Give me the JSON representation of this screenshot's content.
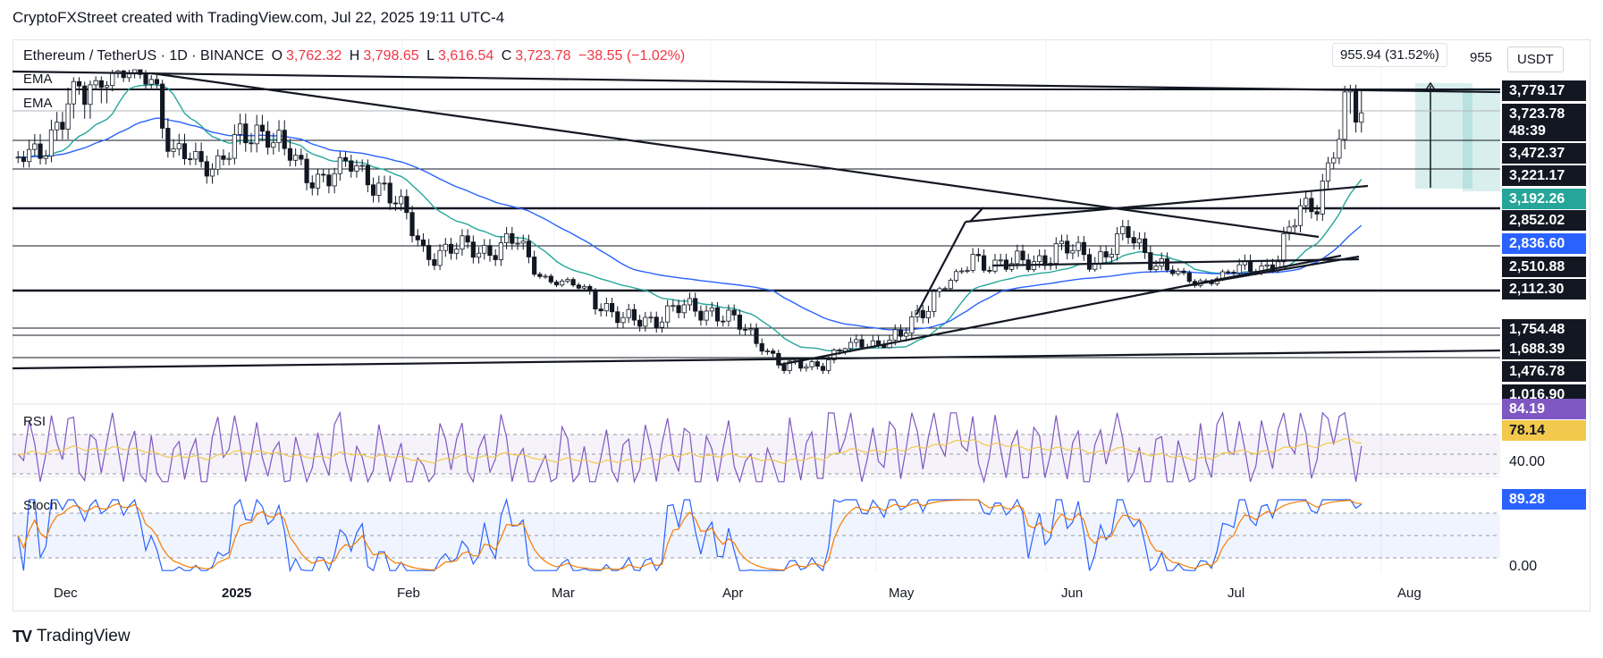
{
  "header": {
    "caption": "CryptoFXStreet created with TradingView.com, Jul 22, 2025 19:11 UTC-4"
  },
  "symbol": {
    "name": "Ethereum / TetherUS · 1D · BINANCE",
    "open_label": "O",
    "open": "3,762.32",
    "high_label": "H",
    "high": "3,798.65",
    "low_label": "L",
    "low": "3,616.54",
    "close_label": "C",
    "close": "3,723.78",
    "change": "−38.55 (−1.02%)"
  },
  "indicators": {
    "ema1": "EMA",
    "ema2": "EMA",
    "rsi": "RSI",
    "stoch": "Stoch"
  },
  "measure": {
    "text": "955.94 (31.52%)",
    "short": "955"
  },
  "currency": "USDT",
  "price_tags": [
    {
      "text": "3,779.17",
      "style": "dark"
    },
    {
      "text": "3,723.78",
      "style": "dark"
    },
    {
      "text": "48:39",
      "style": "dark"
    },
    {
      "text": "3,472.37",
      "style": "dark"
    },
    {
      "text": "3,221.17",
      "style": "dark"
    },
    {
      "text": "3,192.26",
      "style": "green"
    },
    {
      "text": "2,852.02",
      "style": "dark"
    },
    {
      "text": "2,836.60",
      "style": "blue"
    },
    {
      "text": "2,510.88",
      "style": "dark"
    },
    {
      "text": "2,112.30",
      "style": "dark"
    },
    {
      "text": "1,754.48",
      "style": "dark"
    },
    {
      "text": "1,688.39",
      "style": "dark"
    },
    {
      "text": "1,476.78",
      "style": "dark"
    },
    {
      "text": "1,016.90",
      "style": "dark"
    },
    {
      "text": "84.19",
      "style": "purple"
    },
    {
      "text": "78.14",
      "style": "yellow"
    },
    {
      "text": "40.00",
      "style": "white"
    },
    {
      "text": "89.28",
      "style": "blue"
    },
    {
      "text": "0.00",
      "style": "white"
    }
  ],
  "x_axis": [
    "Dec",
    "2025",
    "Feb",
    "Mar",
    "Apr",
    "May",
    "Jun",
    "Jul",
    "Aug"
  ],
  "footer": {
    "brand": "TradingView"
  },
  "colors": {
    "up": "#131722",
    "down": "#131722",
    "ema_fast": "#26a69a",
    "ema_slow": "#2962ff",
    "rsi": "#7e57c2",
    "rsi_ma": "#f2c94c",
    "stoch_k": "#2962ff",
    "stoch_d": "#f57c00"
  },
  "chart_data": {
    "type": "candlestick",
    "title": "Ethereum / TetherUS · 1D · BINANCE",
    "x_range": [
      "2024-11-21",
      "2025-08-16"
    ],
    "y_range": [
      1000,
      3900
    ],
    "ohlc_last": {
      "open": 3762.32,
      "high": 3798.65,
      "low": 3616.54,
      "close": 3723.78
    },
    "price_series": [
      {
        "date": "2024-11-22",
        "close": 3350
      },
      {
        "date": "2024-12-01",
        "close": 3700
      },
      {
        "date": "2024-12-08",
        "close": 3980
      },
      {
        "date": "2024-12-16",
        "close": 4000
      },
      {
        "date": "2024-12-20",
        "close": 3400
      },
      {
        "date": "2024-12-27",
        "close": 3350
      },
      {
        "date": "2025-01-06",
        "close": 3650
      },
      {
        "date": "2025-01-13",
        "close": 3200
      },
      {
        "date": "2025-01-20",
        "close": 3300
      },
      {
        "date": "2025-01-27",
        "close": 3150
      },
      {
        "date": "2025-02-03",
        "close": 2650
      },
      {
        "date": "2025-02-10",
        "close": 2650
      },
      {
        "date": "2025-02-20",
        "close": 2700
      },
      {
        "date": "2025-02-26",
        "close": 2300
      },
      {
        "date": "2025-03-04",
        "close": 2150
      },
      {
        "date": "2025-03-11",
        "close": 1900
      },
      {
        "date": "2025-03-20",
        "close": 1980
      },
      {
        "date": "2025-03-27",
        "close": 2000
      },
      {
        "date": "2025-04-04",
        "close": 1800
      },
      {
        "date": "2025-04-09",
        "close": 1520
      },
      {
        "date": "2025-04-16",
        "close": 1580
      },
      {
        "date": "2025-04-23",
        "close": 1780
      },
      {
        "date": "2025-04-30",
        "close": 1800
      },
      {
        "date": "2025-05-08",
        "close": 2200
      },
      {
        "date": "2025-05-13",
        "close": 2600
      },
      {
        "date": "2025-05-20",
        "close": 2520
      },
      {
        "date": "2025-05-28",
        "close": 2650
      },
      {
        "date": "2025-06-04",
        "close": 2600
      },
      {
        "date": "2025-06-10",
        "close": 2750
      },
      {
        "date": "2025-06-16",
        "close": 2550
      },
      {
        "date": "2025-06-22",
        "close": 2250
      },
      {
        "date": "2025-06-30",
        "close": 2480
      },
      {
        "date": "2025-07-07",
        "close": 2580
      },
      {
        "date": "2025-07-11",
        "close": 2950
      },
      {
        "date": "2025-07-14",
        "close": 3050
      },
      {
        "date": "2025-07-17",
        "close": 3450
      },
      {
        "date": "2025-07-20",
        "close": 3700
      },
      {
        "date": "2025-07-22",
        "close": 3723.78
      }
    ],
    "levels": [
      3779.17,
      3472.37,
      3221.17,
      2852.02,
      2510.88,
      2112.3,
      1754.48,
      1688.39,
      1476.78,
      1016.9
    ],
    "ema_values": {
      "ema_fast": 3192.26,
      "ema_slow": 2836.6
    },
    "rsi": {
      "value": 84.19,
      "ma": 78.14,
      "levels": [
        70,
        50,
        30
      ]
    },
    "stoch": {
      "value": 89.28,
      "levels": [
        80,
        50,
        20
      ]
    }
  }
}
